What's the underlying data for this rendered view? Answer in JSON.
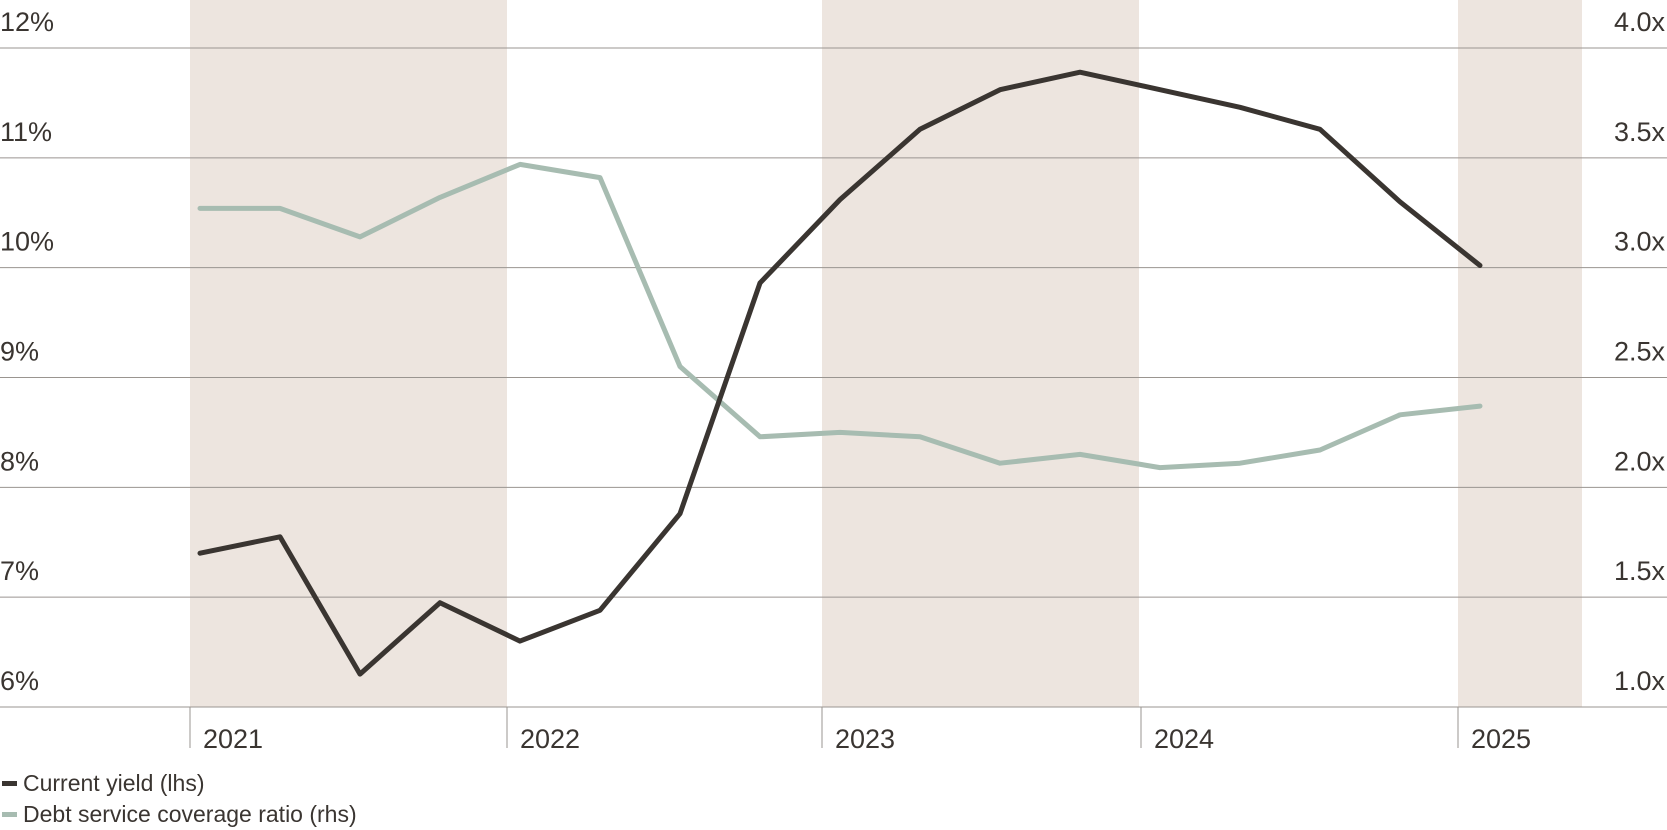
{
  "chart_data": {
    "type": "line",
    "x_labels": [
      "2021",
      "2022",
      "2023",
      "2024",
      "2025"
    ],
    "left_axis": {
      "ticks": [
        "12%",
        "11%",
        "10%",
        "9%",
        "8%",
        "7%",
        "6%"
      ],
      "ylim": [
        6,
        12
      ]
    },
    "right_axis": {
      "ticks": [
        "4.0x",
        "3.5x",
        "3.0x",
        "2.5x",
        "2.0x",
        "1.5x",
        "1.0x"
      ],
      "ylim": [
        1.0,
        4.0
      ]
    },
    "shaded_years": [
      "2021",
      "2023",
      "2025"
    ],
    "grid": true,
    "x": [
      "2021-Q1",
      "2021-Q2",
      "2021-Q3",
      "2021-Q4",
      "2022-Q1",
      "2022-Q2",
      "2022-Q3",
      "2022-Q4",
      "2023-Q1",
      "2023-Q2",
      "2023-Q3",
      "2023-Q4",
      "2024-Q1",
      "2024-Q2",
      "2024-Q3",
      "2024-Q4",
      "2025-Q1"
    ],
    "series": [
      {
        "name": "Current yield (lhs)",
        "axis": "left",
        "color": "#3a3531",
        "values": [
          7.4,
          7.55,
          6.3,
          6.95,
          6.6,
          6.88,
          7.76,
          9.86,
          10.62,
          11.26,
          11.62,
          11.78,
          11.62,
          11.46,
          11.26,
          10.6,
          10.02
        ]
      },
      {
        "name": "Debt service coverage ratio (rhs)",
        "axis": "right",
        "color": "#a7bcb1",
        "values": [
          3.27,
          3.27,
          3.14,
          3.32,
          3.47,
          3.41,
          2.55,
          2.23,
          2.25,
          2.23,
          2.11,
          2.15,
          2.09,
          2.11,
          2.17,
          2.33,
          2.37
        ]
      }
    ],
    "legend_position": "bottom-left"
  },
  "legend": {
    "items": [
      {
        "label": "Current yield (lhs)",
        "color": "#3a3531"
      },
      {
        "label": "Debt service coverage ratio (rhs)",
        "color": "#a7bcb1"
      }
    ]
  },
  "colors": {
    "band": "#ede5df",
    "grid": "#9a9590",
    "axis_text": "#3a3531"
  }
}
